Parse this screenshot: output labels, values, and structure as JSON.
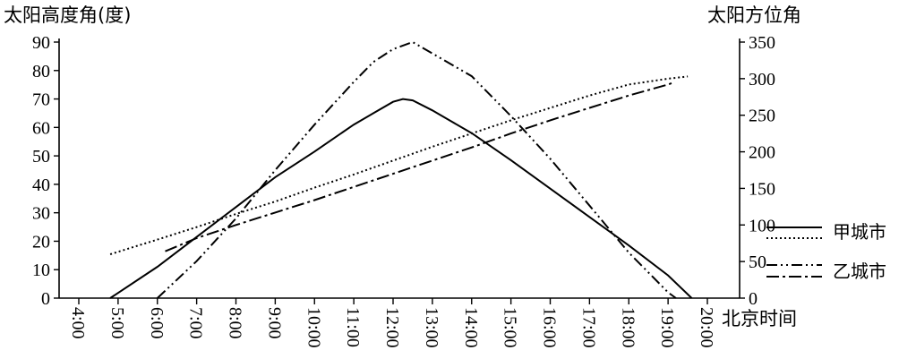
{
  "chart_data": {
    "type": "line",
    "left_axis_title": "太阳高度角(度)",
    "right_axis_title": "太阳方位角",
    "xlabel": "北京时间",
    "x_ticks": [
      "4:00",
      "5:00",
      "6:00",
      "7:00",
      "8:00",
      "9:00",
      "10:00",
      "11:00",
      "12:00",
      "13:00",
      "14:00",
      "15:00",
      "16:00",
      "17:00",
      "18:00",
      "19:00",
      "20:00"
    ],
    "y_left_ticks": [
      0,
      10,
      20,
      30,
      40,
      50,
      60,
      70,
      80,
      90
    ],
    "y_right_ticks": [
      0,
      50,
      100,
      150,
      200,
      250,
      300,
      350
    ],
    "ylim_left": [
      0,
      90
    ],
    "ylim_right": [
      0,
      350
    ],
    "grid": false,
    "legend_position": "right",
    "legend": [
      {
        "label": "甲城市",
        "series": [
          "jia-altitude",
          "jia-azimuth"
        ]
      },
      {
        "label": "乙城市",
        "series": [
          "yi-altitude",
          "yi-azimuth"
        ]
      }
    ],
    "series": [
      {
        "id": "jia-altitude",
        "city": "甲城市",
        "quantity": "altitude",
        "axis": "left",
        "style": "solid",
        "points": [
          [
            4.8,
            0
          ],
          [
            6,
            11
          ],
          [
            7,
            21.5
          ],
          [
            8,
            32
          ],
          [
            9,
            42.5
          ],
          [
            10,
            51.5
          ],
          [
            11,
            61
          ],
          [
            11.5,
            65
          ],
          [
            12,
            69
          ],
          [
            12.25,
            70
          ],
          [
            12.5,
            69.5
          ],
          [
            13,
            66
          ],
          [
            13.5,
            62
          ],
          [
            14,
            58
          ],
          [
            15,
            48.5
          ],
          [
            16,
            38.5
          ],
          [
            17,
            28.5
          ],
          [
            18,
            18.5
          ],
          [
            19,
            8
          ],
          [
            19.6,
            0
          ]
        ]
      },
      {
        "id": "jia-azimuth",
        "city": "甲城市",
        "quantity": "azimuth",
        "axis": "right",
        "style": "dotted",
        "points": [
          [
            4.8,
            60
          ],
          [
            6,
            80
          ],
          [
            7,
            97
          ],
          [
            8,
            115
          ],
          [
            9,
            132
          ],
          [
            10,
            151
          ],
          [
            11,
            169
          ],
          [
            12,
            188
          ],
          [
            13,
            207
          ],
          [
            14,
            225
          ],
          [
            15,
            243
          ],
          [
            16,
            260
          ],
          [
            17,
            277
          ],
          [
            18,
            292
          ],
          [
            19,
            300
          ],
          [
            19.5,
            303
          ]
        ]
      },
      {
        "id": "yi-altitude",
        "city": "乙城市",
        "quantity": "altitude",
        "axis": "left",
        "style": "dash-dot-dot",
        "points": [
          [
            6,
            0
          ],
          [
            7,
            13
          ],
          [
            8,
            28
          ],
          [
            9,
            45
          ],
          [
            10,
            61
          ],
          [
            11,
            76
          ],
          [
            11.5,
            83
          ],
          [
            12,
            87.5
          ],
          [
            12.5,
            90
          ],
          [
            13,
            86
          ],
          [
            14,
            78
          ],
          [
            15,
            64
          ],
          [
            16,
            49
          ],
          [
            17,
            32.5
          ],
          [
            18,
            16
          ],
          [
            19,
            2
          ],
          [
            19.2,
            0
          ]
        ]
      },
      {
        "id": "yi-azimuth",
        "city": "乙城市",
        "quantity": "azimuth",
        "axis": "right",
        "style": "dash-dot",
        "points": [
          [
            6.2,
            64
          ],
          [
            7,
            82
          ],
          [
            8,
            100
          ],
          [
            9,
            117
          ],
          [
            10,
            134
          ],
          [
            11,
            152
          ],
          [
            12,
            170
          ],
          [
            13,
            188
          ],
          [
            14,
            206
          ],
          [
            15,
            225
          ],
          [
            16,
            243
          ],
          [
            17,
            260
          ],
          [
            18,
            277
          ],
          [
            19,
            292
          ],
          [
            19.1,
            294
          ]
        ]
      }
    ]
  }
}
